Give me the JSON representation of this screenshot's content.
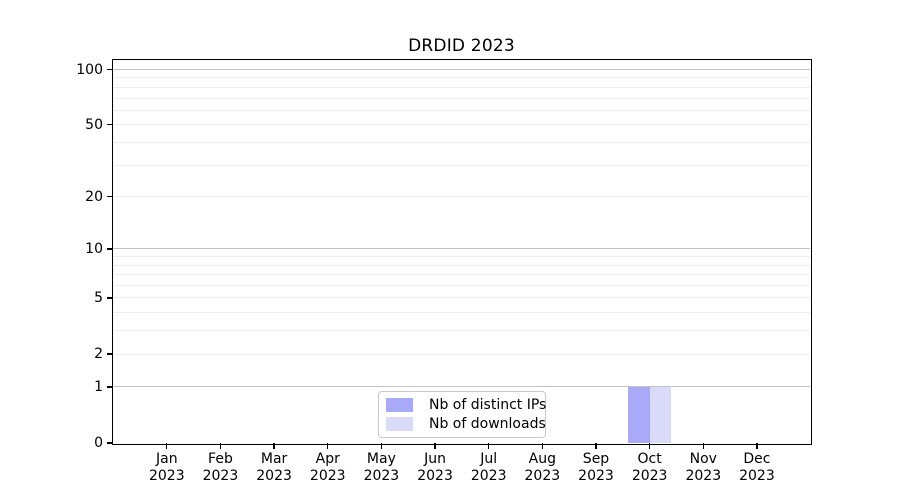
{
  "figure": {
    "title": "DRDID 2023"
  },
  "legend": {
    "items": [
      {
        "label": "Nb of distinct IPs",
        "color": "#a9aaf7"
      },
      {
        "label": "Nb of downloads",
        "color": "#dadbf9"
      }
    ]
  },
  "chart_data": {
    "type": "bar",
    "title": "DRDID 2023",
    "categories": [
      "Jan 2023",
      "Feb 2023",
      "Mar 2023",
      "Apr 2023",
      "May 2023",
      "Jun 2023",
      "Jul 2023",
      "Aug 2023",
      "Sep 2023",
      "Oct 2023",
      "Nov 2023",
      "Dec 2023"
    ],
    "x_tick_months": [
      "Jan",
      "Feb",
      "Mar",
      "Apr",
      "May",
      "Jun",
      "Jul",
      "Aug",
      "Sep",
      "Oct",
      "Nov",
      "Dec"
    ],
    "x_tick_year": "2023",
    "series": [
      {
        "name": "Nb of distinct IPs",
        "color": "#a9aaf7",
        "values": [
          0,
          0,
          0,
          0,
          0,
          0,
          0,
          0,
          0,
          1,
          0,
          0
        ]
      },
      {
        "name": "Nb of downloads",
        "color": "#dadbf9",
        "values": [
          0,
          0,
          0,
          0,
          0,
          0,
          0,
          0,
          0,
          1,
          0,
          0
        ]
      }
    ],
    "xlabel": "",
    "ylabel": "",
    "yscale": "log1p",
    "ylim": [
      0,
      113
    ],
    "y_tick_labels": [
      0,
      1,
      2,
      5,
      10,
      20,
      50,
      100
    ],
    "gridlines_major": [
      1,
      10,
      100
    ],
    "gridlines_minor": [
      2,
      3,
      4,
      5,
      6,
      7,
      8,
      9,
      20,
      30,
      40,
      50,
      60,
      70,
      80,
      90
    ],
    "grid": true,
    "legend_position": "lower center"
  }
}
